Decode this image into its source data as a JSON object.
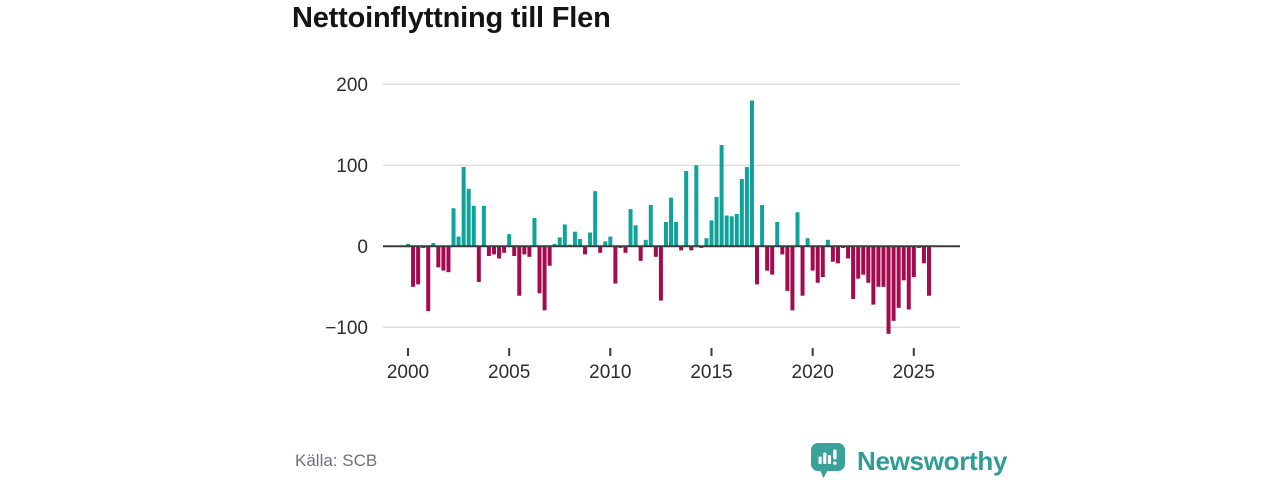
{
  "title": "Nettoinflyttning till Flen",
  "source": {
    "text": "Källa: SCB"
  },
  "branding": {
    "name": "Newsworthy",
    "text_color": "#2f9d96",
    "icon_color": "#3aa19b"
  },
  "chart_data": {
    "type": "bar",
    "title": "Nettoinflyttning till Flen",
    "xlabel": "",
    "ylabel": "",
    "frequency": "quarterly",
    "x_start_year": 2000,
    "x_ticks": [
      2000,
      2005,
      2010,
      2015,
      2020,
      2025
    ],
    "y_ticks": [
      200,
      100,
      0,
      -100
    ],
    "ylim": [
      -125,
      210
    ],
    "grid": true,
    "legend": "none",
    "colors": {
      "positive": "#10a39a",
      "negative": "#a40b4f"
    },
    "categories": [
      "2000 Q1",
      "2000 Q2",
      "2000 Q3",
      "2000 Q4",
      "2001 Q1",
      "2001 Q2",
      "2001 Q3",
      "2001 Q4",
      "2002 Q1",
      "2002 Q2",
      "2002 Q3",
      "2002 Q4",
      "2003 Q1",
      "2003 Q2",
      "2003 Q3",
      "2003 Q4",
      "2004 Q1",
      "2004 Q2",
      "2004 Q3",
      "2004 Q4",
      "2005 Q1",
      "2005 Q2",
      "2005 Q3",
      "2005 Q4",
      "2006 Q1",
      "2006 Q2",
      "2006 Q3",
      "2006 Q4",
      "2007 Q1",
      "2007 Q2",
      "2007 Q3",
      "2007 Q4",
      "2008 Q1",
      "2008 Q2",
      "2008 Q3",
      "2008 Q4",
      "2009 Q1",
      "2009 Q2",
      "2009 Q3",
      "2009 Q4",
      "2010 Q1",
      "2010 Q2",
      "2010 Q3",
      "2010 Q4",
      "2011 Q1",
      "2011 Q2",
      "2011 Q3",
      "2011 Q4",
      "2012 Q1",
      "2012 Q2",
      "2012 Q3",
      "2012 Q4",
      "2013 Q1",
      "2013 Q2",
      "2013 Q3",
      "2013 Q4",
      "2014 Q1",
      "2014 Q2",
      "2014 Q3",
      "2014 Q4",
      "2015 Q1",
      "2015 Q2",
      "2015 Q3",
      "2015 Q4",
      "2016 Q1",
      "2016 Q2",
      "2016 Q3",
      "2016 Q4",
      "2017 Q1",
      "2017 Q2",
      "2017 Q3",
      "2017 Q4",
      "2018 Q1",
      "2018 Q2",
      "2018 Q3",
      "2018 Q4",
      "2019 Q1",
      "2019 Q2",
      "2019 Q3",
      "2019 Q4",
      "2020 Q1",
      "2020 Q2",
      "2020 Q3",
      "2020 Q4",
      "2021 Q1",
      "2021 Q2",
      "2021 Q3",
      "2021 Q4",
      "2022 Q1",
      "2022 Q2",
      "2022 Q3",
      "2022 Q4",
      "2023 Q1",
      "2023 Q2",
      "2023 Q3",
      "2023 Q4",
      "2024 Q1",
      "2024 Q2",
      "2024 Q3",
      "2024 Q4",
      "2025 Q1",
      "2025 Q2",
      "2025 Q3",
      "2025 Q4"
    ],
    "values": [
      3,
      -50,
      -47,
      -2,
      -80,
      4,
      -26,
      -30,
      -32,
      47,
      12,
      98,
      71,
      50,
      -44,
      50,
      -12,
      -10,
      -15,
      -8,
      15,
      -12,
      -61,
      -10,
      -13,
      35,
      -58,
      -79,
      -24,
      3,
      11,
      27,
      2,
      18,
      9,
      -10,
      17,
      68,
      -8,
      6,
      12,
      -46,
      -2,
      -8,
      46,
      26,
      -18,
      8,
      51,
      -13,
      -67,
      30,
      60,
      30,
      -5,
      93,
      -5,
      100,
      -2,
      10,
      32,
      61,
      125,
      38,
      37,
      40,
      83,
      98,
      180,
      -47,
      51,
      -30,
      -35,
      30,
      -10,
      -55,
      -79,
      42,
      -61,
      10,
      -30,
      -45,
      -38,
      8,
      -19,
      -21,
      -2,
      -15,
      -65,
      -40,
      -35,
      -45,
      -72,
      -50,
      -50,
      -108,
      -92,
      -76,
      -42,
      -78,
      -38,
      -2,
      -21,
      -61
    ]
  }
}
